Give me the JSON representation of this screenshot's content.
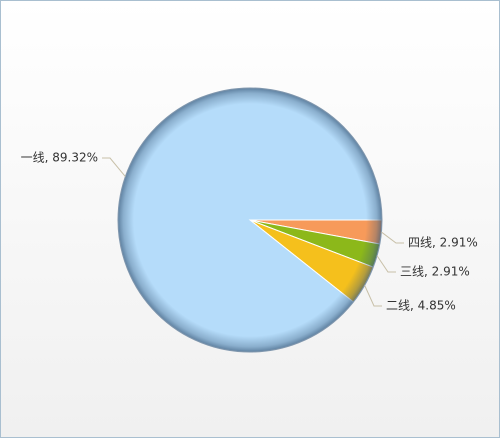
{
  "chart_data": {
    "type": "pie",
    "value_labels": [
      "四线, 2.91%",
      "三线, 2.91%",
      "二线, 4.85%",
      "一线, 89.32%"
    ],
    "values": [
      2.91,
      2.91,
      4.85,
      89.32
    ],
    "colors": [
      "#f79a5a",
      "#8cb81a",
      "#f5c01c",
      "#b5dcfa"
    ]
  }
}
